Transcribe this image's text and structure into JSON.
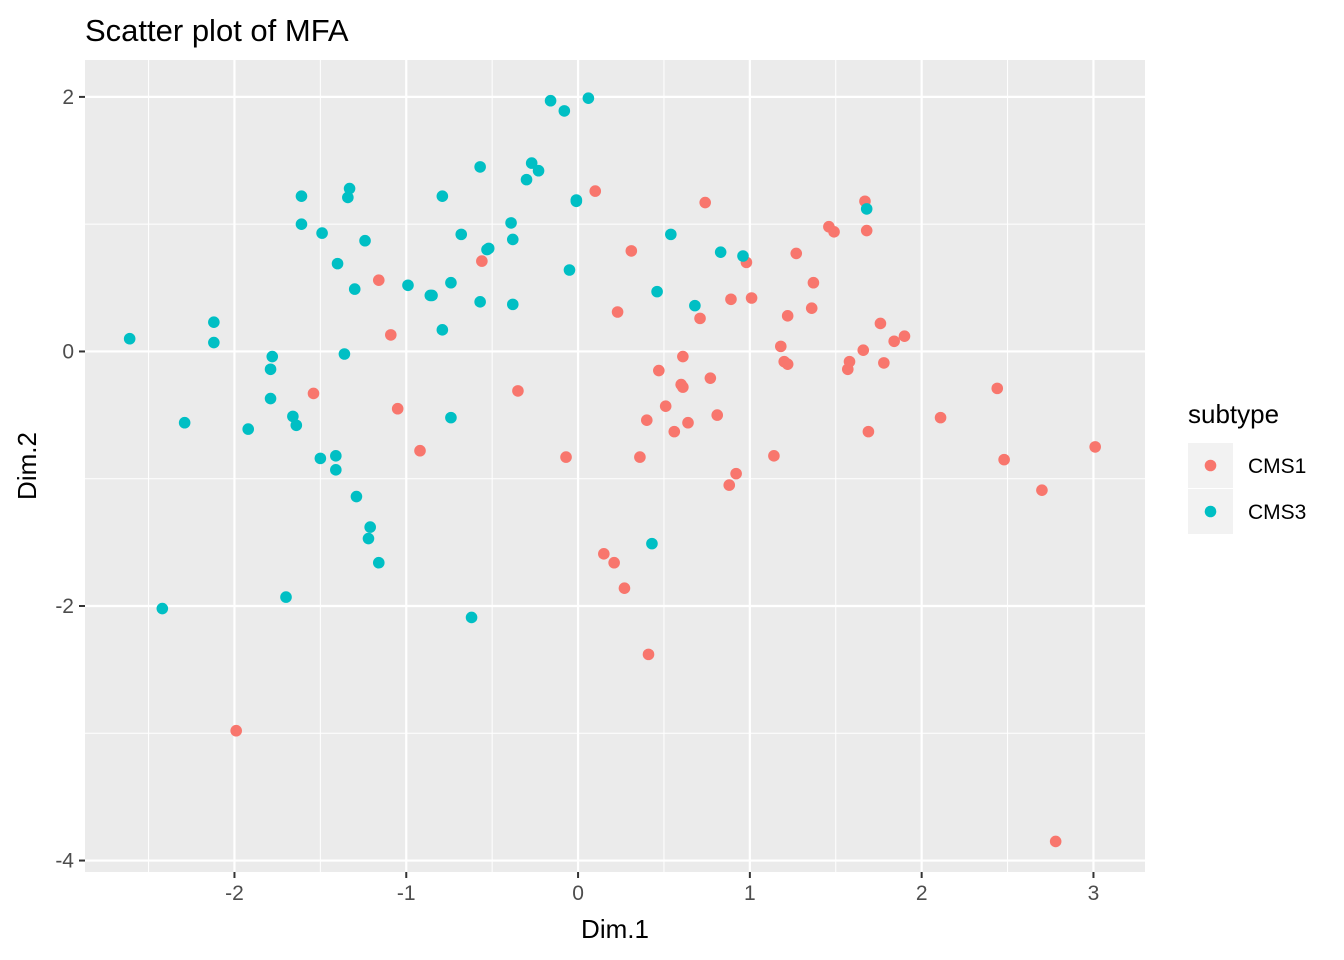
{
  "chart_data": {
    "type": "scatter",
    "title": "Scatter plot of MFA",
    "xlabel": "Dim.1",
    "ylabel": "Dim.2",
    "xlim": [
      -2.87,
      3.3
    ],
    "ylim": [
      -4.09,
      2.29
    ],
    "x_ticks": [
      -2,
      -1,
      0,
      1,
      2,
      3
    ],
    "x_tick_labels": [
      "-2",
      "-1",
      "0",
      "1",
      "2",
      "3"
    ],
    "y_ticks": [
      -4,
      -2,
      0,
      2
    ],
    "y_tick_labels": [
      "-4",
      "-2",
      "0",
      "2"
    ],
    "grid": true,
    "legend": {
      "title": "subtype",
      "placement": "right"
    },
    "background": "#ebebeb",
    "series": [
      {
        "name": "CMS1",
        "color": "#f8766d",
        "points": [
          [
            0.1,
            1.26
          ],
          [
            0.31,
            0.79
          ],
          [
            -0.56,
            0.71
          ],
          [
            -1.16,
            0.56
          ],
          [
            -1.09,
            0.13
          ],
          [
            -1.54,
            -0.33
          ],
          [
            -1.05,
            -0.45
          ],
          [
            -0.92,
            -0.78
          ],
          [
            -0.35,
            -0.31
          ],
          [
            -0.07,
            -0.83
          ],
          [
            0.23,
            0.31
          ],
          [
            0.74,
            1.17
          ],
          [
            0.71,
            0.26
          ],
          [
            0.89,
            0.41
          ],
          [
            1.01,
            0.42
          ],
          [
            0.98,
            0.7
          ],
          [
            1.27,
            0.77
          ],
          [
            1.37,
            0.54
          ],
          [
            1.22,
            0.28
          ],
          [
            1.36,
            0.34
          ],
          [
            1.46,
            0.98
          ],
          [
            1.49,
            0.94
          ],
          [
            1.67,
            1.18
          ],
          [
            1.68,
            0.95
          ],
          [
            1.76,
            0.22
          ],
          [
            1.9,
            0.12
          ],
          [
            1.84,
            0.08
          ],
          [
            1.66,
            0.01
          ],
          [
            1.58,
            -0.08
          ],
          [
            1.57,
            -0.14
          ],
          [
            1.78,
            -0.09
          ],
          [
            1.2,
            -0.08
          ],
          [
            1.22,
            -0.1
          ],
          [
            1.18,
            0.04
          ],
          [
            0.61,
            -0.04
          ],
          [
            0.47,
            -0.15
          ],
          [
            0.6,
            -0.26
          ],
          [
            0.61,
            -0.28
          ],
          [
            0.77,
            -0.21
          ],
          [
            0.4,
            -0.54
          ],
          [
            0.51,
            -0.43
          ],
          [
            0.64,
            -0.56
          ],
          [
            0.56,
            -0.63
          ],
          [
            0.81,
            -0.5
          ],
          [
            0.36,
            -0.83
          ],
          [
            0.92,
            -0.96
          ],
          [
            0.88,
            -1.05
          ],
          [
            1.14,
            -0.82
          ],
          [
            1.69,
            -0.63
          ],
          [
            2.11,
            -0.52
          ],
          [
            2.44,
            -0.29
          ],
          [
            2.48,
            -0.85
          ],
          [
            2.7,
            -1.09
          ],
          [
            3.01,
            -0.75
          ],
          [
            0.15,
            -1.59
          ],
          [
            0.21,
            -1.66
          ],
          [
            0.27,
            -1.86
          ],
          [
            0.41,
            -2.38
          ],
          [
            -1.99,
            -2.98
          ],
          [
            2.78,
            -3.85
          ]
        ]
      },
      {
        "name": "CMS3",
        "color": "#00bfc4",
        "points": [
          [
            0.06,
            1.99
          ],
          [
            -0.16,
            1.97
          ],
          [
            -0.08,
            1.89
          ],
          [
            -0.57,
            1.45
          ],
          [
            -0.27,
            1.48
          ],
          [
            -0.23,
            1.42
          ],
          [
            -0.3,
            1.35
          ],
          [
            -0.01,
            1.19
          ],
          [
            -0.01,
            1.18
          ],
          [
            -0.79,
            1.22
          ],
          [
            -1.33,
            1.28
          ],
          [
            -1.34,
            1.21
          ],
          [
            -1.61,
            1.22
          ],
          [
            -1.61,
            1.0
          ],
          [
            -1.49,
            0.93
          ],
          [
            -1.24,
            0.87
          ],
          [
            -0.68,
            0.92
          ],
          [
            -0.39,
            1.01
          ],
          [
            -0.38,
            0.88
          ],
          [
            -0.52,
            0.81
          ],
          [
            -0.53,
            0.8
          ],
          [
            -1.4,
            0.69
          ],
          [
            -1.3,
            0.49
          ],
          [
            -0.99,
            0.52
          ],
          [
            -0.74,
            0.54
          ],
          [
            -0.85,
            0.44
          ],
          [
            -0.86,
            0.44
          ],
          [
            -0.57,
            0.39
          ],
          [
            -0.38,
            0.37
          ],
          [
            -0.05,
            0.64
          ],
          [
            0.46,
            0.47
          ],
          [
            0.54,
            0.92
          ],
          [
            0.83,
            0.78
          ],
          [
            0.96,
            0.75
          ],
          [
            0.68,
            0.36
          ],
          [
            -0.79,
            0.17
          ],
          [
            -2.12,
            0.23
          ],
          [
            -2.12,
            0.07
          ],
          [
            -2.61,
            0.1
          ],
          [
            -1.78,
            -0.04
          ],
          [
            -1.79,
            -0.14
          ],
          [
            -1.36,
            -0.02
          ],
          [
            -1.79,
            -0.37
          ],
          [
            -1.66,
            -0.51
          ],
          [
            -1.64,
            -0.58
          ],
          [
            -1.92,
            -0.61
          ],
          [
            -2.29,
            -0.56
          ],
          [
            -0.74,
            -0.52
          ],
          [
            -1.5,
            -0.84
          ],
          [
            -1.41,
            -0.82
          ],
          [
            -1.41,
            -0.93
          ],
          [
            -1.29,
            -1.14
          ],
          [
            -1.21,
            -1.38
          ],
          [
            -1.22,
            -1.47
          ],
          [
            -1.16,
            -1.66
          ],
          [
            -1.7,
            -1.93
          ],
          [
            -2.42,
            -2.02
          ],
          [
            -0.62,
            -2.09
          ],
          [
            0.43,
            -1.51
          ],
          [
            1.68,
            1.12
          ]
        ]
      }
    ]
  }
}
